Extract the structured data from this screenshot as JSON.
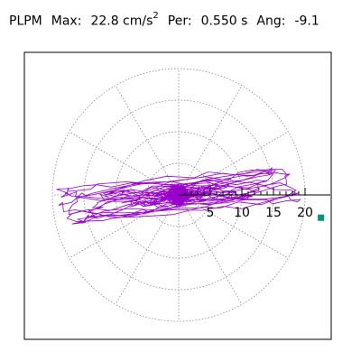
{
  "title": {
    "station": "PLPM",
    "max_label": "Max:",
    "max_value": "22.8 cm/s",
    "max_exp": "2",
    "per_label": "Per:",
    "per_value": "0.550 s",
    "ang_label": "Ang:",
    "ang_value": "-9.1"
  },
  "colors": {
    "trace": "#9900cc",
    "marker": "#009977",
    "grid": "#888888",
    "axis": "#000000"
  },
  "chart_data": {
    "type": "scatter",
    "title": "PLPM Max: 22.8 cm/s2 Per: 0.550 s Ang: -9.1",
    "polar": true,
    "radial_ticks": [
      5,
      10,
      15,
      20
    ],
    "radial_tick_labels": [
      "5",
      "10",
      "15",
      "20"
    ],
    "rmax": 20,
    "grid": true,
    "max_point": {
      "r": 22.8,
      "angle_deg": -9.1
    }
  }
}
